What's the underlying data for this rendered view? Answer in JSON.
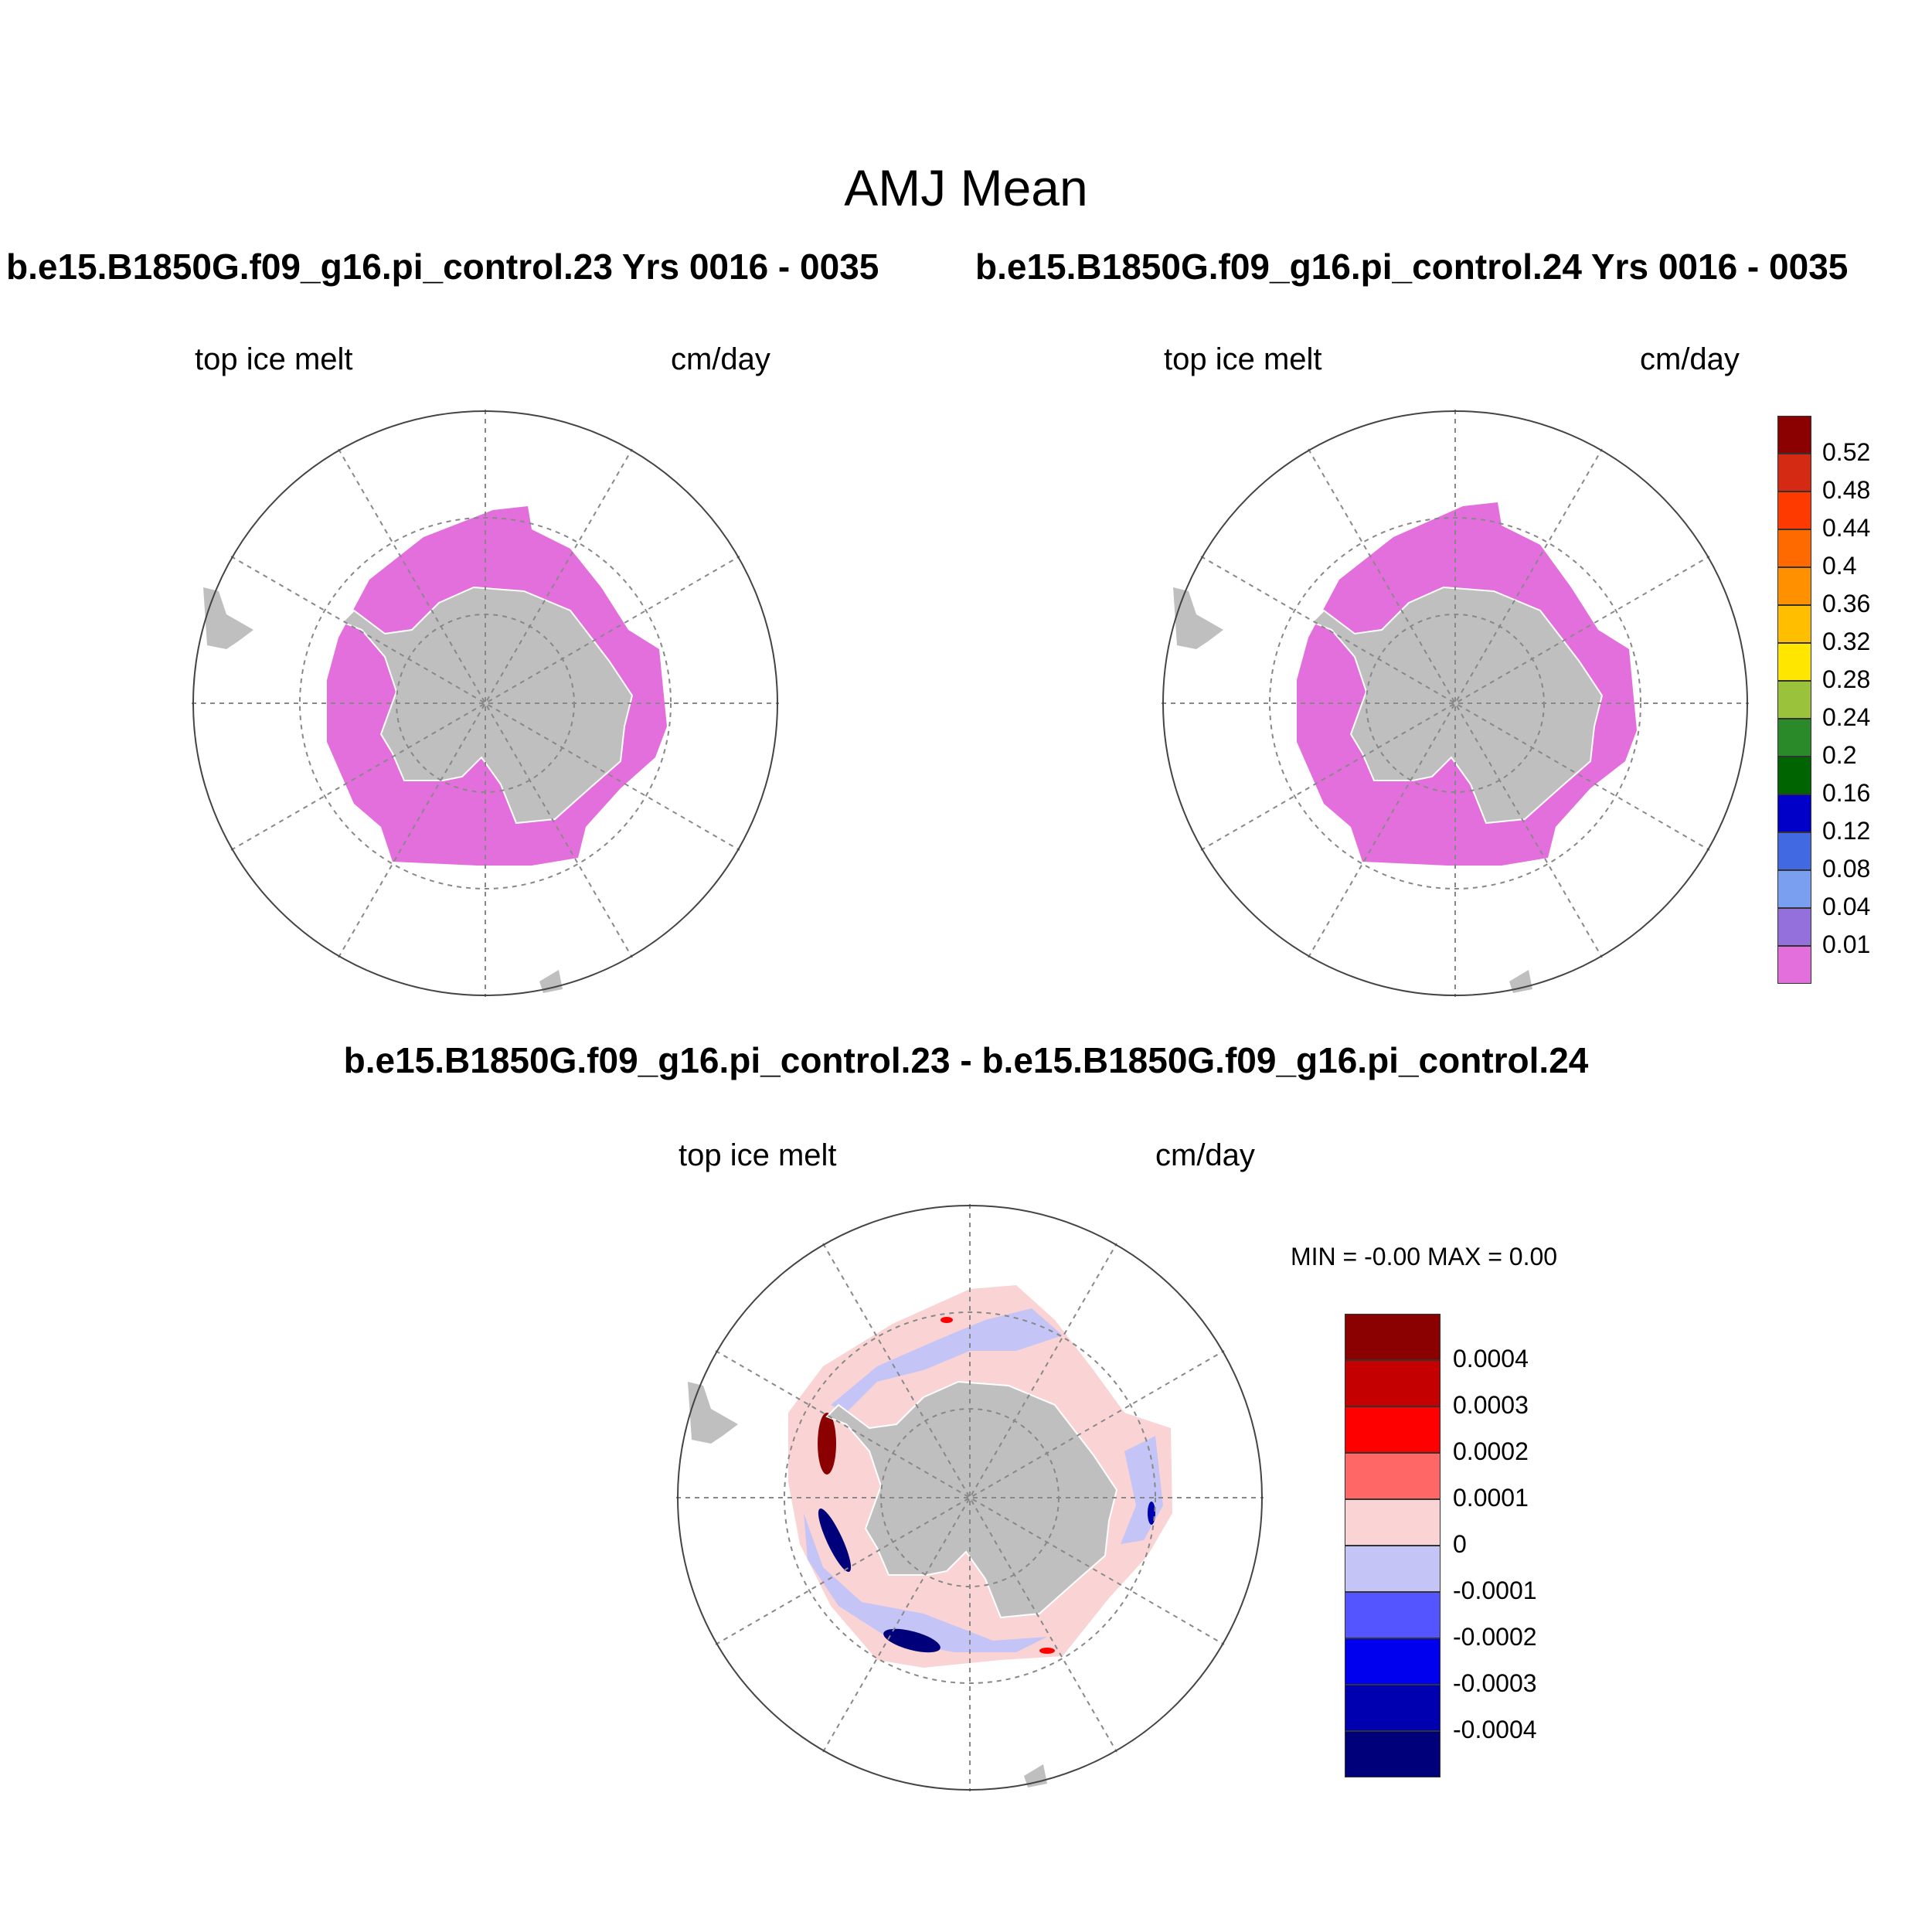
{
  "title": "AMJ Mean",
  "panels": [
    {
      "title": "b.e15.B1850G.f09_g16.pi_control.23  Yrs 0016 - 0035",
      "left_label": "top ice melt",
      "right_label": "cm/day"
    },
    {
      "title": "b.e15.B1850G.f09_g16.pi_control.24  Yrs 0016 - 0035",
      "left_label": "top ice melt",
      "right_label": "cm/day"
    }
  ],
  "diff_panel": {
    "title": "b.e15.B1850G.f09_g16.pi_control.23 - b.e15.B1850G.f09_g16.pi_control.24",
    "left_label": "top ice melt",
    "right_label": "cm/day",
    "minmax": "MIN =  -0.00 MAX =   0.00"
  },
  "colorbar_top": {
    "labels": [
      "0.52",
      "0.48",
      "0.44",
      "0.4",
      "0.36",
      "0.32",
      "0.28",
      "0.24",
      "0.2",
      "0.16",
      "0.12",
      "0.08",
      "0.04",
      "0.01"
    ],
    "colors": [
      "#8b0000",
      "#d42a14",
      "#ff3a00",
      "#ff6a00",
      "#ff9000",
      "#ffbf00",
      "#ffe600",
      "#9ac23a",
      "#2a8a2a",
      "#006400",
      "#0000c8",
      "#4169e1",
      "#7b9ff0",
      "#9370db",
      "#e36fdc"
    ]
  },
  "colorbar_diff": {
    "labels": [
      "0.0004",
      "0.0003",
      "0.0002",
      "0.0001",
      "0",
      "-0.0001",
      "-0.0002",
      "-0.0003",
      "-0.0004"
    ],
    "colors": [
      "#8b0000",
      "#c40000",
      "#ff0000",
      "#ff6666",
      "#fad4d4",
      "#c4c4f6",
      "#5555ff",
      "#0000ee",
      "#0000b0",
      "#00007a"
    ]
  },
  "colors": {
    "land": "#bfbfbf",
    "ice": "#e36fdc",
    "pos_light": "#fad4d4",
    "neg_light": "#c4c4f6"
  }
}
